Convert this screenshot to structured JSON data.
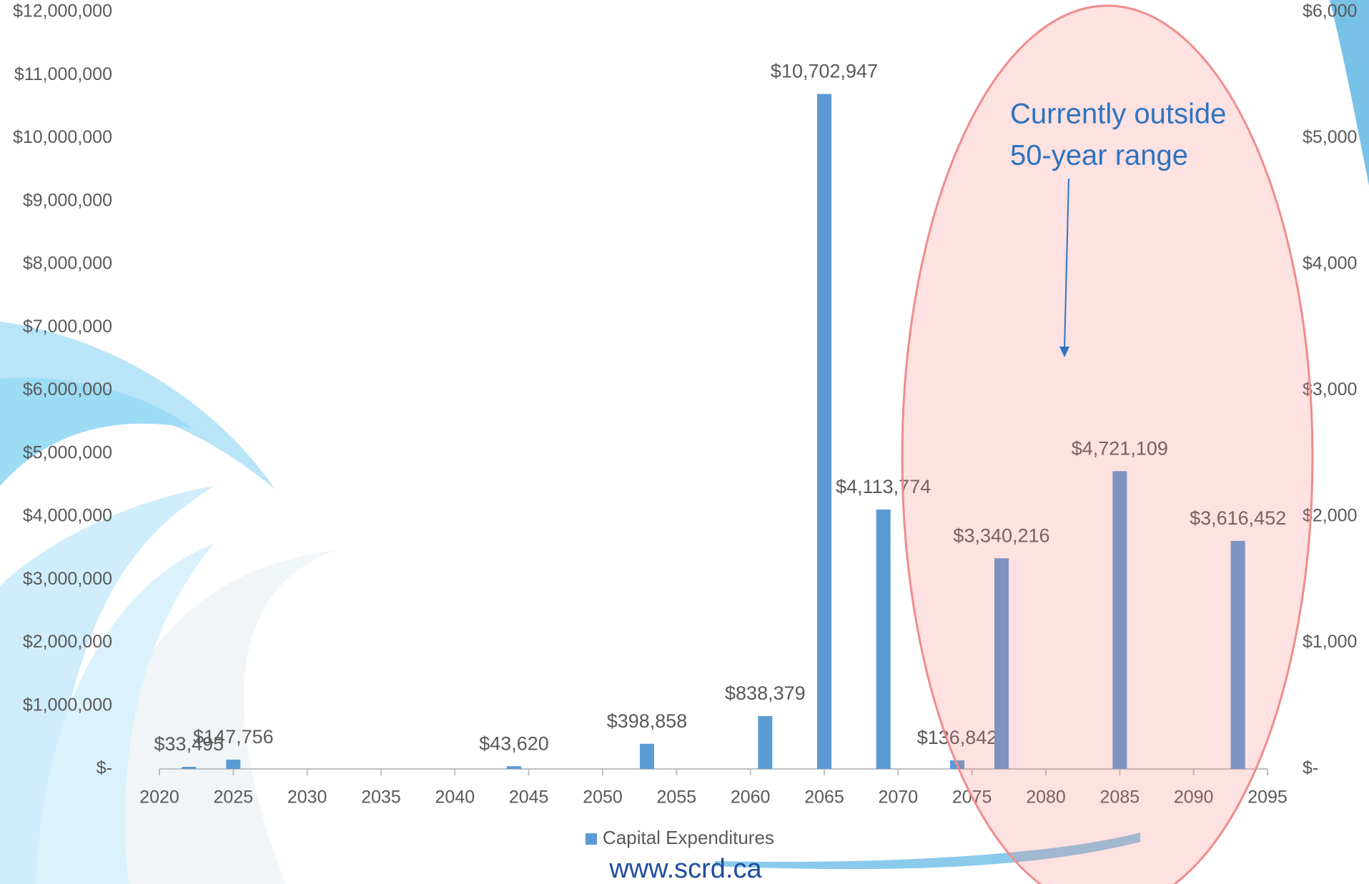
{
  "chart_data": {
    "type": "bar",
    "x": [
      2022,
      2025,
      2044,
      2053,
      2061,
      2065,
      2069,
      2074,
      2077,
      2085,
      2093
    ],
    "series": [
      {
        "name": "Capital Expenditures",
        "color": "#5b9bd5",
        "values": [
          33495,
          147756,
          43620,
          398858,
          838379,
          10702947,
          4113774,
          136842,
          3340216,
          4721109,
          3616452
        ],
        "value_labels": [
          "$33,495",
          "$147,756",
          "$43,620",
          "$398,858",
          "$838,379",
          "$10,702,947",
          "$4,113,774",
          "$136,842",
          "$3,340,216",
          "$4,721,109",
          "$3,616,452"
        ]
      }
    ],
    "xlim": [
      2020,
      2095
    ],
    "xticks": [
      2020,
      2025,
      2030,
      2035,
      2040,
      2045,
      2050,
      2055,
      2060,
      2065,
      2070,
      2075,
      2080,
      2085,
      2090,
      2095
    ],
    "ylim": [
      0,
      12000000
    ],
    "yticks": [
      {
        "value": 0,
        "label": "$-"
      },
      {
        "value": 1000000,
        "label": "$1,000,000"
      },
      {
        "value": 2000000,
        "label": "$2,000,000"
      },
      {
        "value": 3000000,
        "label": "$3,000,000"
      },
      {
        "value": 4000000,
        "label": "$4,000,000"
      },
      {
        "value": 5000000,
        "label": "$5,000,000"
      },
      {
        "value": 6000000,
        "label": "$6,000,000"
      },
      {
        "value": 7000000,
        "label": "$7,000,000"
      },
      {
        "value": 8000000,
        "label": "$8,000,000"
      },
      {
        "value": 9000000,
        "label": "$9,000,000"
      },
      {
        "value": 10000000,
        "label": "$10,000,000"
      },
      {
        "value": 11000000,
        "label": "$11,000,000"
      },
      {
        "value": 12000000,
        "label": "$12,000,000"
      }
    ],
    "y2lim": [
      0,
      6000
    ],
    "y2ticks": [
      {
        "value": 0,
        "label": "$-"
      },
      {
        "value": 1000,
        "label": "$1,000"
      },
      {
        "value": 2000,
        "label": "$2,000"
      },
      {
        "value": 3000,
        "label": "$3,000"
      },
      {
        "value": 4000,
        "label": "$4,000"
      },
      {
        "value": 5000,
        "label": "$5,000"
      },
      {
        "value": 6000,
        "label": "$6,000"
      }
    ],
    "annotation": [
      "Currently outside",
      "50-year range"
    ]
  },
  "footer": "www.scrd.ca"
}
